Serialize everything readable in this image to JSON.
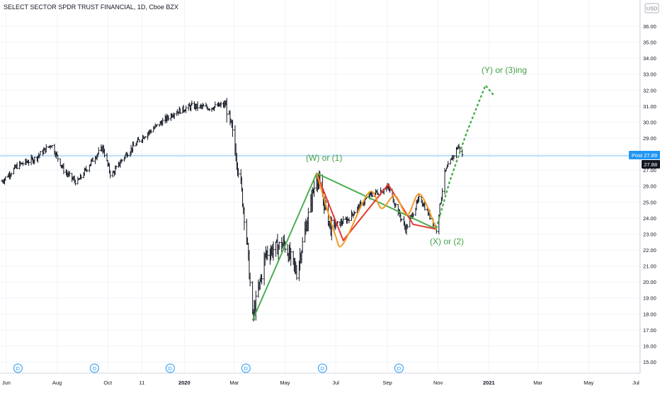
{
  "header": {
    "symbol_label": "SELECT SECTOR SPDR TRUST FINANCIAL, 1D, Cboe BZX"
  },
  "currency_badge": "USD",
  "price_tags": {
    "post_label": "Post",
    "post_value": "27.89",
    "last_value": "27.88"
  },
  "dividend_marker": "D",
  "annotations": {
    "w_label": "(W) or (1)",
    "x_label": "(X) or (2)",
    "y_label": "(Y) or (3)ing"
  },
  "colors": {
    "bar": "#131722",
    "green": "#4caf50",
    "red": "#e53935",
    "orange": "#f59a23",
    "label_green": "#43a047",
    "dividend_blue": "#2196f3",
    "post_line": "#2196f3",
    "grid": "#f0f3fa"
  },
  "chart_data": {
    "type": "candlestick",
    "title": "SELECT SECTOR SPDR TRUST FINANCIAL, 1D, Cboe BZX",
    "x_tick_labels": [
      "Jun",
      "Aug",
      "Oct",
      "11",
      "2020",
      "Mar",
      "May",
      "Jul",
      "Sep",
      "Nov",
      "2021",
      "Mar",
      "May",
      "Jul"
    ],
    "y_ticks": [
      15,
      16,
      17,
      18,
      19,
      20,
      21,
      22,
      23,
      24,
      25,
      26,
      27,
      28,
      29,
      30,
      31,
      32,
      33,
      34,
      35,
      36
    ],
    "y_tick_labels": [
      "15.00",
      "16.00",
      "17.00",
      "18.00",
      "19.00",
      "20.00",
      "21.00",
      "22.00",
      "23.00",
      "24.00",
      "25.00",
      "26.00",
      "27.00",
      "28.00",
      "29.00",
      "30.00",
      "31.00",
      "32.00",
      "33.00",
      "34.00",
      "35.00",
      "36.00"
    ],
    "ylim": [
      14.6,
      36.6
    ],
    "currency": "USD",
    "post_price": 27.89,
    "last_price": 27.88,
    "dividend_dates": [
      "2019-06",
      "2019-09",
      "2019-12",
      "2020-03",
      "2020-06",
      "2020-09"
    ],
    "price_path": [
      [
        "2019-05-27",
        26.3
      ],
      [
        "2019-06-15",
        27.3
      ],
      [
        "2019-07-05",
        27.7
      ],
      [
        "2019-07-25",
        28.6
      ],
      [
        "2019-08-10",
        26.9
      ],
      [
        "2019-08-25",
        26.2
      ],
      [
        "2019-09-15",
        27.8
      ],
      [
        "2019-09-25",
        28.4
      ],
      [
        "2019-10-05",
        26.6
      ],
      [
        "2019-10-20",
        27.8
      ],
      [
        "2019-11-10",
        29.0
      ],
      [
        "2019-11-30",
        29.8
      ],
      [
        "2019-12-20",
        30.6
      ],
      [
        "2020-01-10",
        31.0
      ],
      [
        "2020-01-31",
        30.9
      ],
      [
        "2020-02-20",
        31.1
      ],
      [
        "2020-02-28",
        29.2
      ],
      [
        "2020-03-08",
        26.5
      ],
      [
        "2020-03-16",
        22.8
      ],
      [
        "2020-03-23",
        17.7
      ],
      [
        "2020-04-08",
        21.8
      ],
      [
        "2020-04-30",
        22.4
      ],
      [
        "2020-05-15",
        20.6
      ],
      [
        "2020-06-08",
        26.7
      ],
      [
        "2020-06-25",
        23.4
      ],
      [
        "2020-07-15",
        23.9
      ],
      [
        "2020-08-10",
        25.4
      ],
      [
        "2020-09-02",
        25.9
      ],
      [
        "2020-09-23",
        23.3
      ],
      [
        "2020-10-10",
        25.3
      ],
      [
        "2020-10-30",
        23.3
      ],
      [
        "2020-11-09",
        26.8
      ],
      [
        "2020-11-25",
        28.5
      ],
      [
        "2020-11-30",
        27.9
      ]
    ],
    "wave_lines": {
      "green": [
        [
          "2020-03-23",
          17.6
        ],
        [
          "2020-06-08",
          26.8
        ],
        [
          "2020-10-30",
          23.3
        ]
      ],
      "red": [
        [
          "2020-06-08",
          26.8
        ],
        [
          "2020-07-10",
          22.6
        ],
        [
          "2020-09-02",
          26.1
        ],
        [
          "2020-10-02",
          23.6
        ],
        [
          "2020-10-30",
          23.3
        ]
      ],
      "orange": [
        [
          "2020-06-08",
          26.8
        ],
        [
          "2020-06-30",
          23.0
        ],
        [
          "2020-07-10",
          22.4
        ],
        [
          "2020-08-10",
          25.6
        ],
        [
          "2020-08-25",
          24.6
        ],
        [
          "2020-09-10",
          25.4
        ],
        [
          "2020-09-25",
          24.2
        ],
        [
          "2020-10-10",
          25.5
        ],
        [
          "2020-10-30",
          23.3
        ]
      ],
      "projection_dotted": [
        [
          "2020-10-30",
          23.4
        ],
        [
          "2020-11-15",
          26.3
        ],
        [
          "2020-12-05",
          29.3
        ],
        [
          "2020-12-28",
          32.3
        ],
        [
          "2021-01-08",
          31.6
        ]
      ]
    }
  }
}
